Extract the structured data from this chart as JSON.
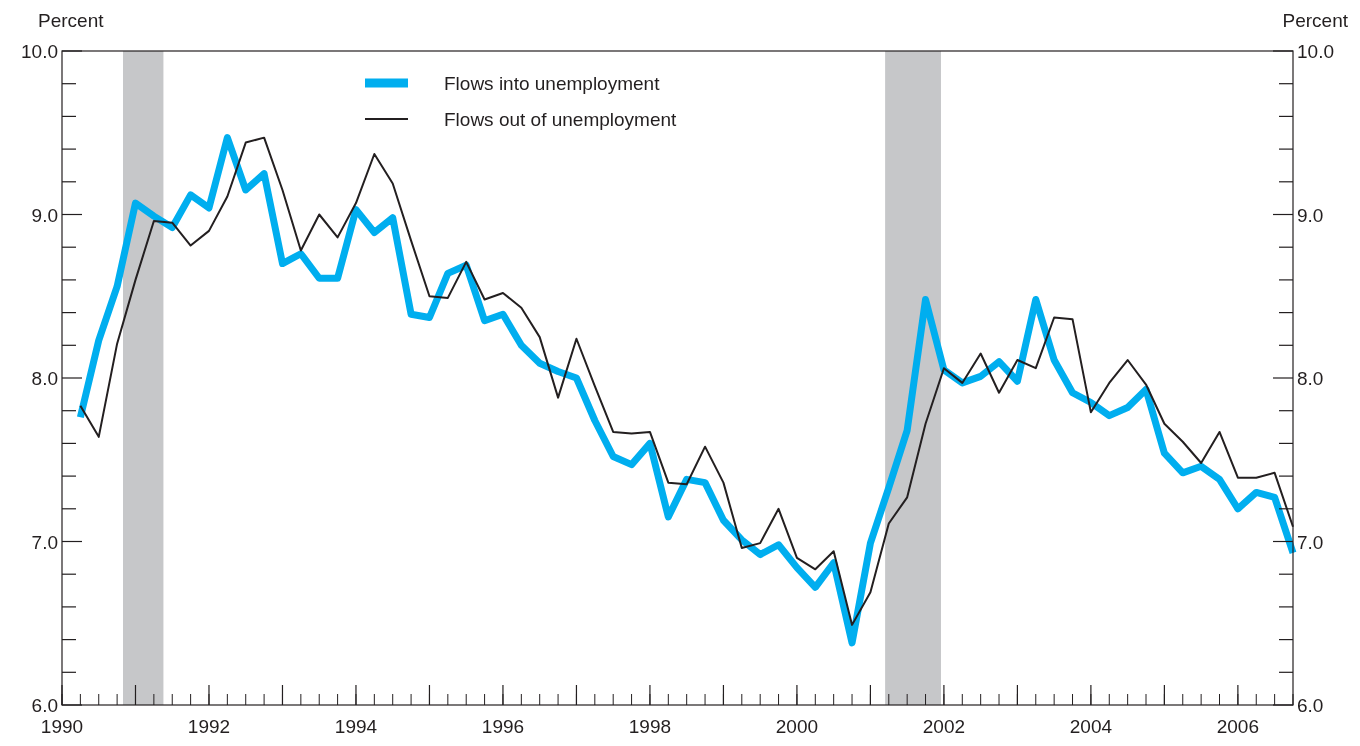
{
  "chart_data": {
    "type": "line",
    "ylabel": "Percent",
    "y2label": "Percent",
    "x": [
      1990.25,
      1990.5,
      1990.75,
      1991,
      1991.25,
      1991.5,
      1991.75,
      1992,
      1992.25,
      1992.5,
      1992.75,
      1993,
      1993.25,
      1993.5,
      1993.75,
      1994,
      1994.25,
      1994.5,
      1994.75,
      1995,
      1995.25,
      1995.5,
      1995.75,
      1996,
      1996.25,
      1996.5,
      1996.75,
      1997,
      1997.25,
      1997.5,
      1997.75,
      1998,
      1998.25,
      1998.5,
      1998.75,
      1999,
      1999.25,
      1999.5,
      1999.75,
      2000,
      2000.25,
      2000.5,
      2000.75,
      2001,
      2001.25,
      2001.5,
      2001.75,
      2002,
      2002.25,
      2002.5,
      2002.75,
      2003,
      2003.25,
      2003.5,
      2003.75,
      2004,
      2004.25,
      2004.5,
      2004.75,
      2005,
      2005.25,
      2005.5,
      2005.75,
      2006,
      2006.25,
      2006.5,
      2006.75
    ],
    "series": [
      {
        "name": "Flows into unemployment",
        "color": "#00aeef",
        "values": [
          7.76,
          8.23,
          8.56,
          9.07,
          8.99,
          8.92,
          9.12,
          9.04,
          9.47,
          9.15,
          9.25,
          8.7,
          8.76,
          8.61,
          8.61,
          9.03,
          8.89,
          8.98,
          8.39,
          8.37,
          8.64,
          8.69,
          8.35,
          8.39,
          8.2,
          8.09,
          8.04,
          8.0,
          7.74,
          7.52,
          7.47,
          7.6,
          7.15,
          7.38,
          7.36,
          7.13,
          7.01,
          6.92,
          6.98,
          6.84,
          6.72,
          6.87,
          6.38,
          6.99,
          7.33,
          7.68,
          8.48,
          8.05,
          7.97,
          8.01,
          8.1,
          7.98,
          8.48,
          8.11,
          7.91,
          7.85,
          7.77,
          7.82,
          7.93,
          7.54,
          7.42,
          7.46,
          7.38,
          7.2,
          7.3,
          7.27,
          6.93
        ]
      },
      {
        "name": "Flows out of unemployment",
        "color": "#231f20",
        "values": [
          7.83,
          7.64,
          8.21,
          8.6,
          8.96,
          8.95,
          8.81,
          8.9,
          9.11,
          9.44,
          9.47,
          9.15,
          8.78,
          9.0,
          8.86,
          9.07,
          9.37,
          9.19,
          8.84,
          8.5,
          8.49,
          8.71,
          8.48,
          8.52,
          8.43,
          8.25,
          7.88,
          8.24,
          7.95,
          7.67,
          7.66,
          7.67,
          7.36,
          7.35,
          7.58,
          7.36,
          6.96,
          6.99,
          7.2,
          6.9,
          6.83,
          6.94,
          6.49,
          6.69,
          7.11,
          7.27,
          7.72,
          8.06,
          7.97,
          8.15,
          7.91,
          8.11,
          8.06,
          8.37,
          8.36,
          7.79,
          7.97,
          8.11,
          7.96,
          7.72,
          7.61,
          7.48,
          7.67,
          7.39,
          7.39,
          7.42,
          7.09
        ]
      }
    ],
    "xlim": [
      1990,
      2006.75
    ],
    "xticks": [
      1990,
      {
        "value": 1991,
        "label": null
      },
      1992,
      {
        "value": 1993,
        "label": null
      },
      1994,
      {
        "value": 1995,
        "label": null
      },
      1996,
      {
        "value": 1997,
        "label": null
      },
      1998,
      {
        "value": 1999,
        "label": null
      },
      2000,
      {
        "value": 2001,
        "label": null
      },
      2002,
      {
        "value": 2003,
        "label": null
      },
      2004,
      {
        "value": 2005,
        "label": null
      },
      2006
    ],
    "ylim": [
      6,
      10
    ],
    "yticks": [
      {
        "value": 6,
        "label": "6.0"
      },
      {
        "value": 6.2,
        "label": null
      },
      {
        "value": 6.4,
        "label": null
      },
      {
        "value": 6.6,
        "label": null
      },
      {
        "value": 6.8,
        "label": null
      },
      {
        "value": 7,
        "label": "7.0"
      },
      {
        "value": 7.2,
        "label": null
      },
      {
        "value": 7.4,
        "label": null
      },
      {
        "value": 7.6,
        "label": null
      },
      {
        "value": 7.8,
        "label": null
      },
      {
        "value": 8,
        "label": "8.0"
      },
      {
        "value": 8.2,
        "label": null
      },
      {
        "value": 8.4,
        "label": null
      },
      {
        "value": 8.6,
        "label": null
      },
      {
        "value": 8.8,
        "label": null
      },
      {
        "value": 9,
        "label": "9.0"
      },
      {
        "value": 9.2,
        "label": null
      },
      {
        "value": 9.4,
        "label": null
      },
      {
        "value": 9.6,
        "label": null
      },
      {
        "value": 9.8,
        "label": null
      },
      {
        "value": 10,
        "label": "10.0"
      }
    ],
    "y2lim": [
      6,
      10
    ],
    "y2ticks": [
      {
        "value": 6,
        "label": "6.0"
      },
      {
        "value": 6.2,
        "label": null
      },
      {
        "value": 6.4,
        "label": null
      },
      {
        "value": 6.6,
        "label": null
      },
      {
        "value": 6.8,
        "label": null
      },
      {
        "value": 7,
        "label": "7.0"
      },
      {
        "value": 7.2,
        "label": null
      },
      {
        "value": 7.4,
        "label": null
      },
      {
        "value": 7.6,
        "label": null
      },
      {
        "value": 7.8,
        "label": null
      },
      {
        "value": 8,
        "label": "8.0"
      },
      {
        "value": 8.2,
        "label": null
      },
      {
        "value": 8.4,
        "label": null
      },
      {
        "value": 8.6,
        "label": null
      },
      {
        "value": 8.8,
        "label": null
      },
      {
        "value": 9,
        "label": "9.0"
      },
      {
        "value": 9.2,
        "label": null
      },
      {
        "value": 9.4,
        "label": null
      },
      {
        "value": 9.6,
        "label": null
      },
      {
        "value": 9.8,
        "label": null
      },
      {
        "value": 10,
        "label": "10.0"
      }
    ],
    "bands": [
      {
        "axis": "x",
        "from": 1990.83,
        "to": 1991.38,
        "color": "#c6c7c9"
      },
      {
        "axis": "x",
        "from": 2001.2,
        "to": 2001.96,
        "color": "#c6c7c9"
      }
    ],
    "legend": "top",
    "grid": false
  }
}
